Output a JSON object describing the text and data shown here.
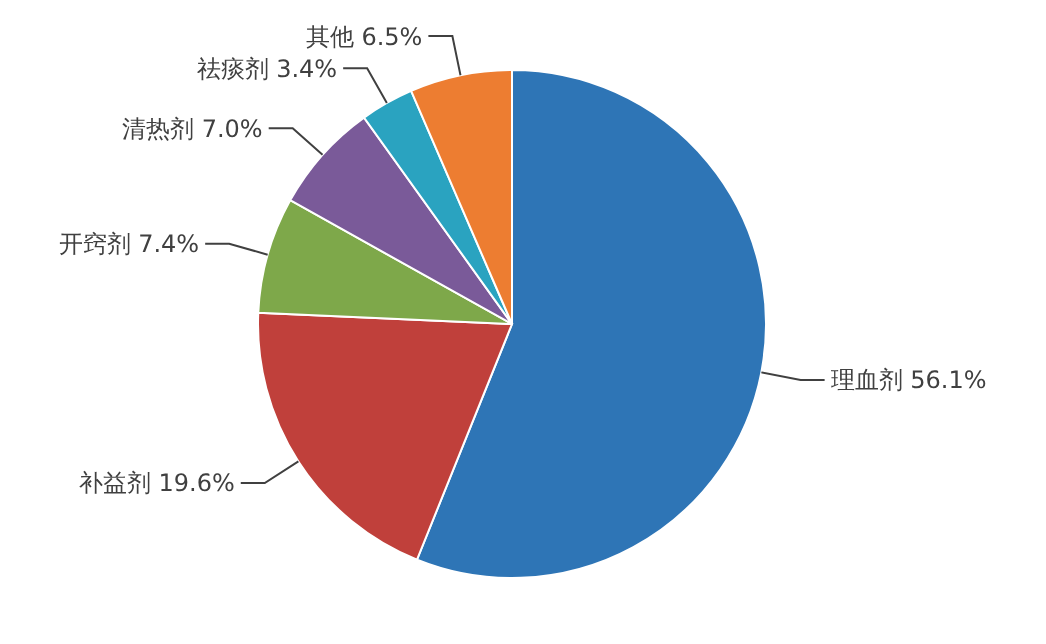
{
  "chart_data": {
    "type": "pie",
    "categories": [
      "理血剂",
      "补益剂",
      "开窍剂",
      "清热剂",
      "祛痰剂",
      "其他"
    ],
    "values": [
      56.1,
      19.6,
      7.4,
      7.0,
      3.4,
      6.5
    ],
    "value_labels": [
      "56.1%",
      "19.6%",
      "7.4%",
      "7.0%",
      "3.4%",
      "6.5%"
    ],
    "colors": [
      "#2e75b6",
      "#c0403b",
      "#7ea84a",
      "#7a5a99",
      "#2aa3c0",
      "#ed7d31"
    ],
    "data_labels": true
  }
}
